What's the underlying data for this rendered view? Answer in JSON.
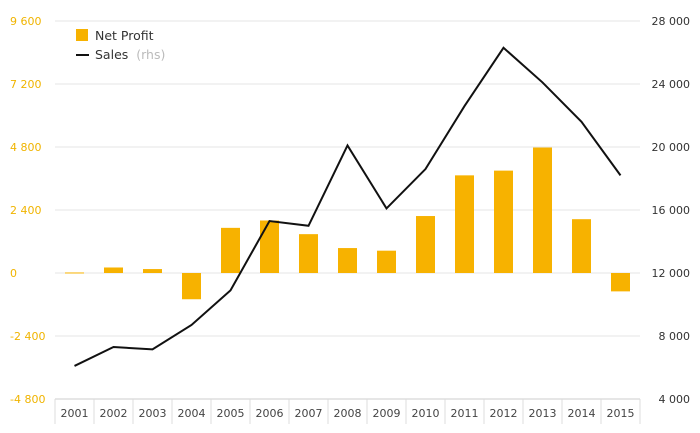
{
  "chart_data": {
    "type": "bar+line",
    "categories": [
      "2001",
      "2002",
      "2003",
      "2004",
      "2005",
      "2006",
      "2007",
      "2008",
      "2009",
      "2010",
      "2011",
      "2012",
      "2013",
      "2014",
      "2015"
    ],
    "series": [
      {
        "name": "Net Profit",
        "kind": "bar",
        "axis": "left",
        "color": "#f7b200",
        "values": [
          20,
          210,
          150,
          -1000,
          1720,
          2000,
          1480,
          950,
          850,
          2170,
          3720,
          3900,
          4780,
          2050,
          -700
        ]
      },
      {
        "name": "Sales",
        "name_suffix": "(rhs)",
        "kind": "line",
        "axis": "right",
        "color": "#111111",
        "values": [
          6100,
          7300,
          7150,
          8700,
          10900,
          15300,
          15000,
          20100,
          16100,
          18600,
          22600,
          26300,
          24100,
          21600,
          18200
        ]
      }
    ],
    "left_axis": {
      "ylim": [
        -4800,
        9600
      ],
      "ticks": [
        -4800,
        -2400,
        0,
        2400,
        4800,
        7200,
        9600
      ],
      "tick_labels": [
        "-4 800",
        "-2 400",
        "0",
        "2 400",
        "4 800",
        "7 200",
        "9 600"
      ],
      "color": "#f0b400"
    },
    "right_axis": {
      "ylim": [
        4000,
        28000
      ],
      "ticks": [
        4000,
        8000,
        12000,
        16000,
        20000,
        24000,
        28000
      ],
      "tick_labels": [
        "4 000",
        "8 000",
        "12 000",
        "16 000",
        "20 000",
        "24 000",
        "28 000"
      ],
      "color": "#333333"
    },
    "grid": true,
    "legend_position": "top-left"
  }
}
